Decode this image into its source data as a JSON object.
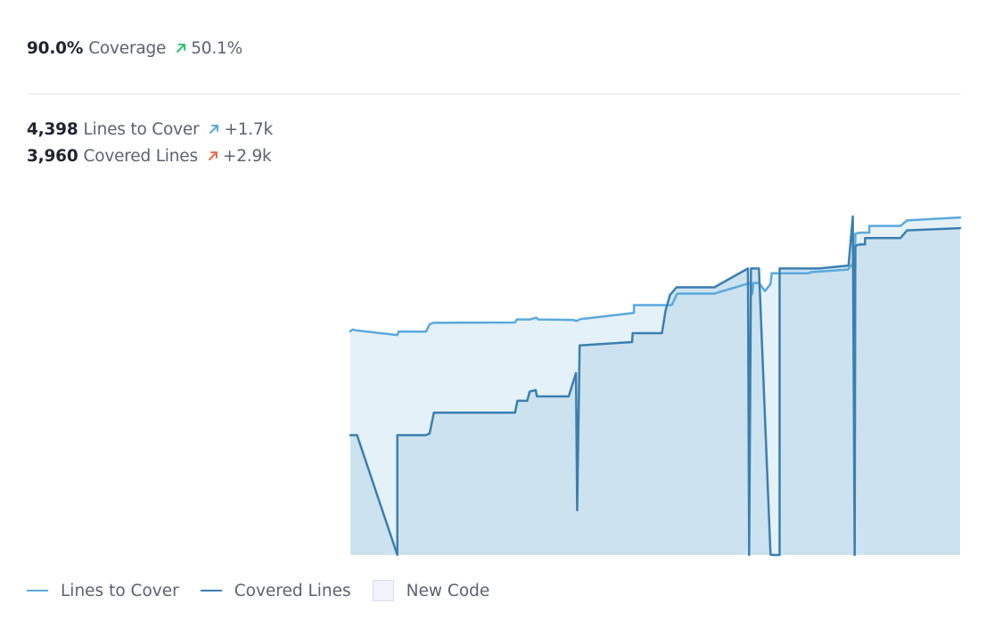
{
  "header": {
    "coverage": {
      "value": "90.0%",
      "label": "Coverage",
      "delta": "50.1%",
      "delta_color": "#2dc76e"
    },
    "lines_to_cover": {
      "value": "4,398",
      "label": "Lines to Cover",
      "delta": "+1.7k",
      "delta_color": "#5aa9dd"
    },
    "covered_lines": {
      "value": "3,960",
      "label": "Covered Lines",
      "delta": "+2.9k",
      "delta_color": "#f06a4d"
    }
  },
  "icons": {
    "delta_arrow": "arrow-up-right-icon"
  },
  "colors": {
    "lines_to_cover": "#5aa9dd",
    "covered_lines": "#3a7fb0",
    "lines_to_cover_fill": "#e4f1f9",
    "covered_lines_fill": "#cde2ef",
    "new_code": "#f1f2fb"
  },
  "legend": {
    "lines_to_cover": "Lines to Cover",
    "covered_lines": "Covered Lines",
    "new_code": "New Code"
  },
  "chart_data": {
    "type": "area",
    "title": "",
    "xlabel": "",
    "ylabel": "",
    "grid": false,
    "legend_position": "bottom-left",
    "x_range": [
      0,
      100
    ],
    "ylim": [
      0,
      1
    ],
    "series": [
      {
        "name": "Lines to Cover",
        "points": [
          [
            0,
            0.605
          ],
          [
            0.4,
            0.61
          ],
          [
            0.8,
            0.608
          ],
          [
            7.7,
            0.595
          ],
          [
            7.9,
            0.604
          ],
          [
            12.4,
            0.604
          ],
          [
            13.0,
            0.624
          ],
          [
            13.6,
            0.628
          ],
          [
            27.0,
            0.629
          ],
          [
            27.3,
            0.637
          ],
          [
            29.5,
            0.637
          ],
          [
            30.5,
            0.642
          ],
          [
            30.8,
            0.637
          ],
          [
            36.5,
            0.636
          ],
          [
            37.1,
            0.633
          ],
          [
            37.7,
            0.638
          ],
          [
            46.5,
            0.655
          ],
          [
            46.5,
            0.676
          ],
          [
            52.7,
            0.676
          ],
          [
            53.6,
            0.707
          ],
          [
            59.7,
            0.707
          ],
          [
            65.6,
            0.736
          ],
          [
            65.9,
            0.706
          ],
          [
            66.1,
            0.736
          ],
          [
            67.0,
            0.736
          ],
          [
            68.0,
            0.714
          ],
          [
            68.9,
            0.733
          ],
          [
            69.1,
            0.762
          ],
          [
            75.2,
            0.762
          ],
          [
            75.5,
            0.765
          ],
          [
            81.6,
            0.772
          ],
          [
            82.4,
            0.789
          ],
          [
            82.8,
            0.778
          ],
          [
            82.8,
            0.869
          ],
          [
            83.3,
            0.871
          ],
          [
            83.6,
            0.872
          ],
          [
            85.1,
            0.872
          ],
          [
            85.1,
            0.89
          ],
          [
            90.2,
            0.89
          ],
          [
            91.3,
            0.905
          ],
          [
            100.0,
            0.913
          ]
        ]
      },
      {
        "name": "Covered Lines",
        "points": [
          [
            0,
            0.324
          ],
          [
            1.1,
            0.324
          ],
          [
            7.7,
            0
          ],
          [
            7.7,
            0.324
          ],
          [
            12.4,
            0.324
          ],
          [
            13.0,
            0.329
          ],
          [
            13.7,
            0.385
          ],
          [
            27.0,
            0.385
          ],
          [
            27.4,
            0.417
          ],
          [
            29.0,
            0.417
          ],
          [
            29.4,
            0.442
          ],
          [
            30.4,
            0.446
          ],
          [
            30.6,
            0.429
          ],
          [
            35.8,
            0.429
          ],
          [
            37.0,
            0.492
          ],
          [
            37.2,
            0.121
          ],
          [
            37.6,
            0.567
          ],
          [
            46.2,
            0.576
          ],
          [
            46.3,
            0.6
          ],
          [
            51.1,
            0.6
          ],
          [
            51.7,
            0.661
          ],
          [
            52.4,
            0.703
          ],
          [
            53.5,
            0.724
          ],
          [
            59.7,
            0.724
          ],
          [
            65.2,
            0.775
          ],
          [
            65.4,
            0
          ],
          [
            65.7,
            0.775
          ],
          [
            67.0,
            0.775
          ],
          [
            68.9,
            0.001
          ],
          [
            69.2,
            0
          ],
          [
            70.4,
            0
          ],
          [
            70.4,
            0.775
          ],
          [
            76.8,
            0.775
          ],
          [
            81.7,
            0.783
          ],
          [
            82.4,
            0.916
          ],
          [
            82.7,
            0
          ],
          [
            82.8,
            0.836
          ],
          [
            83.5,
            0.84
          ],
          [
            84.4,
            0.84
          ],
          [
            84.4,
            0.857
          ],
          [
            90.2,
            0.857
          ],
          [
            91.3,
            0.878
          ],
          [
            100.0,
            0.884
          ]
        ]
      }
    ]
  }
}
